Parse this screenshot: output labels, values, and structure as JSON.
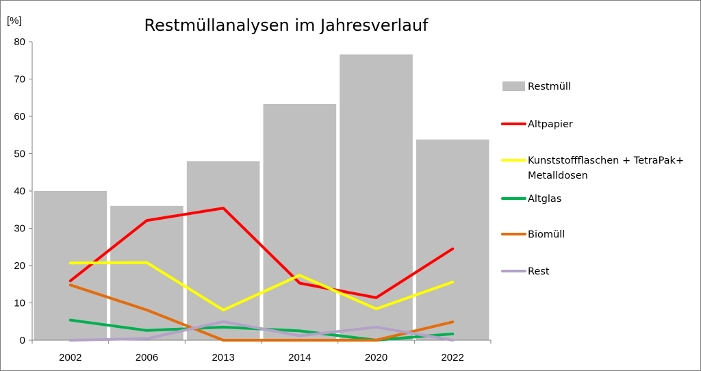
{
  "chart_data": {
    "type": "bar+line",
    "title": "Restmüllanalysen im Jahresverlauf",
    "y_unit_label": "[%]",
    "ylim": [
      0,
      80
    ],
    "y_ticks": [
      "0",
      "10",
      "20",
      "30",
      "40",
      "50",
      "60",
      "70",
      "80"
    ],
    "categories": [
      "2002",
      "2006",
      "2013",
      "2014",
      "2020",
      "2022"
    ],
    "grid": false,
    "legend_position": "right",
    "bar_series": {
      "name": "Restmüll",
      "color": "#bfbfbf",
      "values": [
        40,
        36,
        48,
        63.3,
        76.6,
        53.8
      ]
    },
    "line_series": [
      {
        "name": "Altpapier",
        "color": "#ff0000",
        "values": [
          15.9,
          32.1,
          35.4,
          15.3,
          11.4,
          24.5
        ]
      },
      {
        "name_lines": [
          "Kunststoffflaschen + TetraPak+",
          "Metalldosen"
        ],
        "name": "Kunststoffflaschen + TetraPak+ Metalldosen",
        "color": "#ffff00",
        "values": [
          20.7,
          20.8,
          8.1,
          17.4,
          8.4,
          15.6
        ]
      },
      {
        "name": "Altglas",
        "color": "#00b050",
        "values": [
          5.4,
          2.6,
          3.5,
          2.5,
          0,
          1.7
        ]
      },
      {
        "name": "Biomüll",
        "color": "#e46c0a",
        "values": [
          14.8,
          8.1,
          0,
          0,
          0,
          4.9
        ]
      },
      {
        "name": "Rest",
        "color": "#b3a2c7",
        "values": [
          0,
          0.4,
          5,
          1.2,
          3.5,
          0
        ]
      }
    ]
  }
}
